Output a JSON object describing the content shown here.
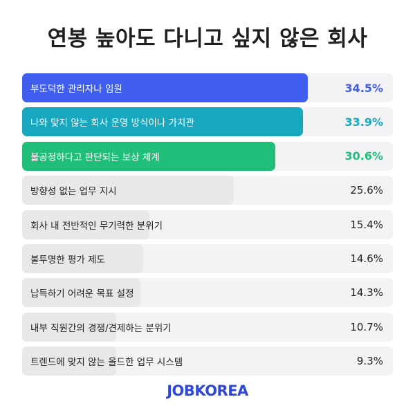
{
  "title": "연봉 높아도 다니고 싶지 않은 회사",
  "brand": "JOBKOREA",
  "chart_data": {
    "type": "bar",
    "orientation": "horizontal",
    "title": "연봉 높아도 다니고 싶지 않은 회사",
    "categories": [
      "부도덕한 관리자나 임원",
      "나와 맞지 않는 회사 운영 방식이나 가치관",
      "불공정하다고 판단되는 보상 체계",
      "방향성 없는 업무 지시",
      "회사 내 전반적인 무기력한 분위기",
      "불투명한 평가 제도",
      "납득하기 어려운 목표 설정",
      "내부 직원간의 경쟁/견제하는 분위기",
      "트렌드에 맞지 않는 올드한 업무 시스템"
    ],
    "values": [
      34.5,
      33.9,
      30.6,
      25.6,
      15.4,
      14.6,
      14.3,
      10.7,
      9.3
    ],
    "value_labels": [
      "34.5%",
      "33.9%",
      "30.6%",
      "25.6%",
      "15.4%",
      "14.6%",
      "14.3%",
      "10.7%",
      "9.3%"
    ],
    "unit": "%",
    "highlight_colors": [
      "#3f5ef0",
      "#17a8bf",
      "#1fbf7a"
    ],
    "default_bar_color": "#e8e8ea",
    "track_color": "#f3f3f5"
  }
}
